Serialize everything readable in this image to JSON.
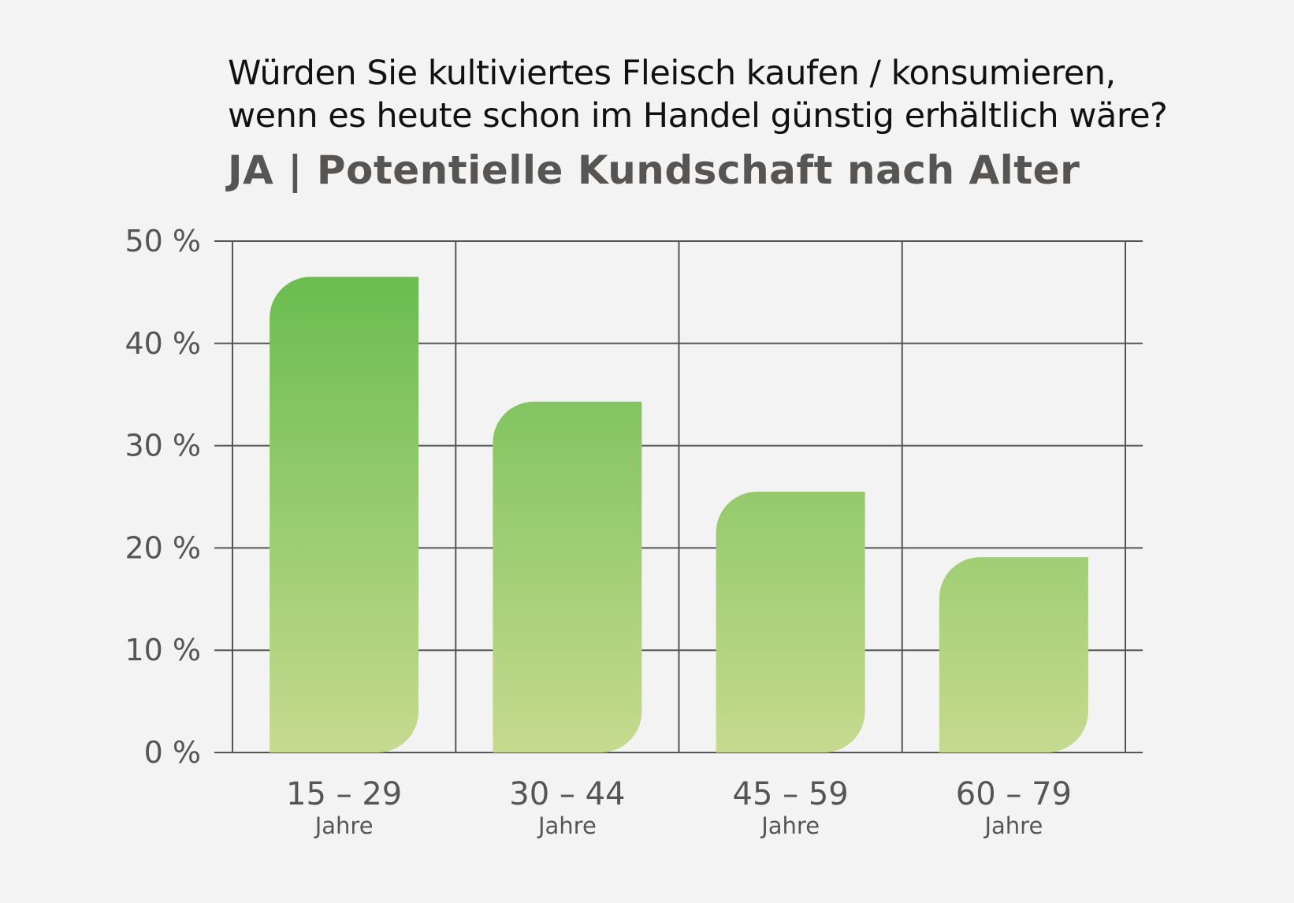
{
  "chart_data": {
    "type": "bar",
    "title": "Würden Sie kultiviertes Fleisch kaufen / konsumieren,",
    "title_line2": "wenn es heute schon im Handel günstig erhältlich wäre?",
    "subtitle": "JA | Potentielle Kundschaft nach Alter",
    "categories": [
      "15 – 29",
      "30 – 44",
      "45 – 59",
      "60 – 79"
    ],
    "category_unit": "Jahre",
    "values": [
      46.5,
      34.3,
      25.5,
      19.1
    ],
    "yticks": [
      "0 %",
      "10 %",
      "20 %",
      "30 %",
      "40 %",
      "50 %"
    ],
    "ylim": [
      0,
      50
    ],
    "grid": true,
    "colors": {
      "bar_top": "#6abd4f",
      "bar_bottom": "#c6da8f",
      "grid": "#575554",
      "text": "#575554",
      "background": "#f3f3f3"
    }
  }
}
